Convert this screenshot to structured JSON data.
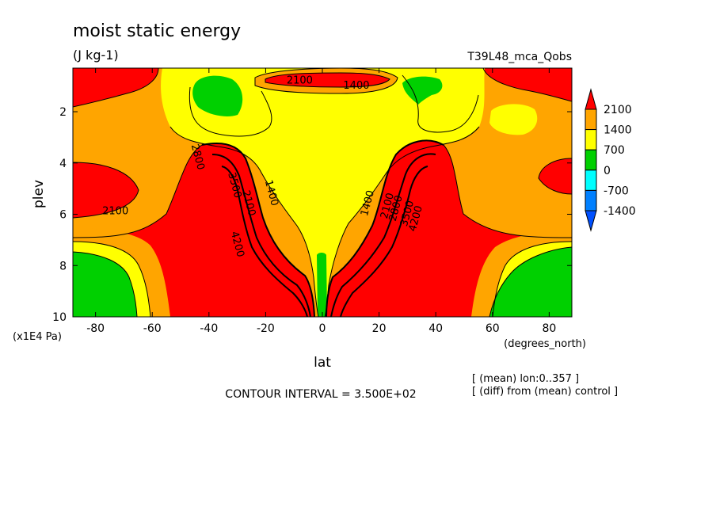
{
  "chart_data": {
    "type": "heatmap",
    "title": "moist static energy",
    "units": "(J kg-1)",
    "run_label": "T39L48_mca_Qobs",
    "xlabel": "lat",
    "xunits": "(degrees_north)",
    "ylabel": "plev",
    "yunits": "(x1E4 Pa)",
    "xlim": [
      -88,
      88
    ],
    "ylim": [
      10,
      0.3
    ],
    "x_ticks": [
      -80,
      -60,
      -40,
      -20,
      0,
      20,
      40,
      60,
      80
    ],
    "x_tick_labels": [
      "-80",
      "-60",
      "-40",
      "-20",
      "0",
      "20",
      "40",
      "60",
      "80"
    ],
    "y_ticks": [
      2,
      4,
      6,
      8,
      10
    ],
    "y_tick_labels": [
      "2",
      "4",
      "6",
      "8",
      "10"
    ],
    "contour_interval": "CONTOUR INTERVAL = 3.500E+02",
    "notes": [
      "[ (mean) lon:0..357 ]",
      "[ (diff) from (mean) control ]"
    ],
    "colorbar": {
      "labels": [
        "2100",
        "1400",
        "700",
        "0",
        "-700",
        "-1400"
      ],
      "colors": [
        "#ff0000",
        "#ffa500",
        "#ffff00",
        "#00d000",
        "#00ffff",
        "#0080ff",
        "#0050ff"
      ]
    },
    "contour_labels": [
      {
        "text": "2100",
        "lat": -8,
        "plev": 0.9
      },
      {
        "text": "1400",
        "lat": 12,
        "plev": 1.1
      },
      {
        "text": "2800",
        "lat": -45,
        "plev": 3.8
      },
      {
        "text": "3500",
        "lat": -32,
        "plev": 4.9
      },
      {
        "text": "2100",
        "lat": -27,
        "plev": 5.6
      },
      {
        "text": "1400",
        "lat": -19,
        "plev": 5.2
      },
      {
        "text": "4200",
        "lat": -31,
        "plev": 7.2
      },
      {
        "text": "2100",
        "lat": -73,
        "plev": 6.0
      },
      {
        "text": "1400",
        "lat": 17,
        "plev": 5.6
      },
      {
        "text": "2100",
        "lat": 24,
        "plev": 5.7
      },
      {
        "text": "2800",
        "lat": 27,
        "plev": 5.8
      },
      {
        "text": "3500",
        "lat": 31,
        "plev": 6.0
      },
      {
        "text": "4200",
        "lat": 34,
        "plev": 6.2
      }
    ]
  }
}
